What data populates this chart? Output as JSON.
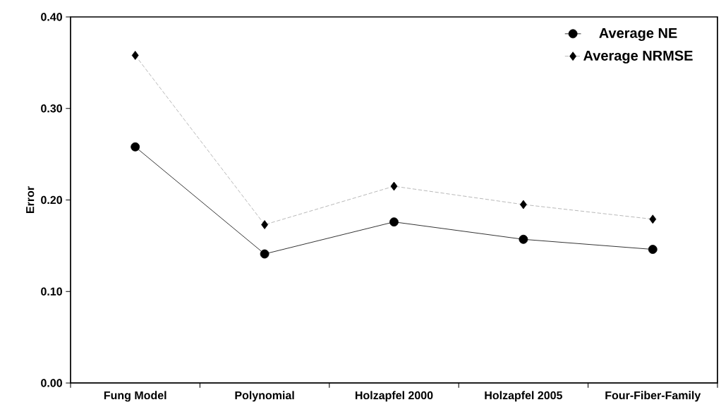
{
  "chart_data": {
    "type": "line",
    "ylabel": "Error",
    "categories": [
      "Fung Model",
      "Polynomial",
      "Holzapfel 2000",
      "Holzapfel 2005",
      "Four-Fiber-Family"
    ],
    "series": [
      {
        "name": "Average NE",
        "color": "#000000",
        "marker": "circle",
        "line_style": "solid",
        "values": [
          0.258,
          0.141,
          0.176,
          0.157,
          0.146
        ]
      },
      {
        "name": "Average NRMSE",
        "color": "#a6a6a6",
        "marker": "diamond",
        "line_style": "dashed",
        "values": [
          0.358,
          0.173,
          0.215,
          0.195,
          0.179
        ]
      }
    ],
    "ylim": [
      0,
      0.4
    ],
    "yticks": [
      {
        "value": 0,
        "label": "0.00"
      },
      {
        "value": 0.1,
        "label": "0.10"
      },
      {
        "value": 0.2,
        "label": "0.20"
      },
      {
        "value": 0.3,
        "label": "0.30"
      },
      {
        "value": 0.4,
        "label": "0.40"
      }
    ],
    "grid": false,
    "legend": "top right"
  }
}
